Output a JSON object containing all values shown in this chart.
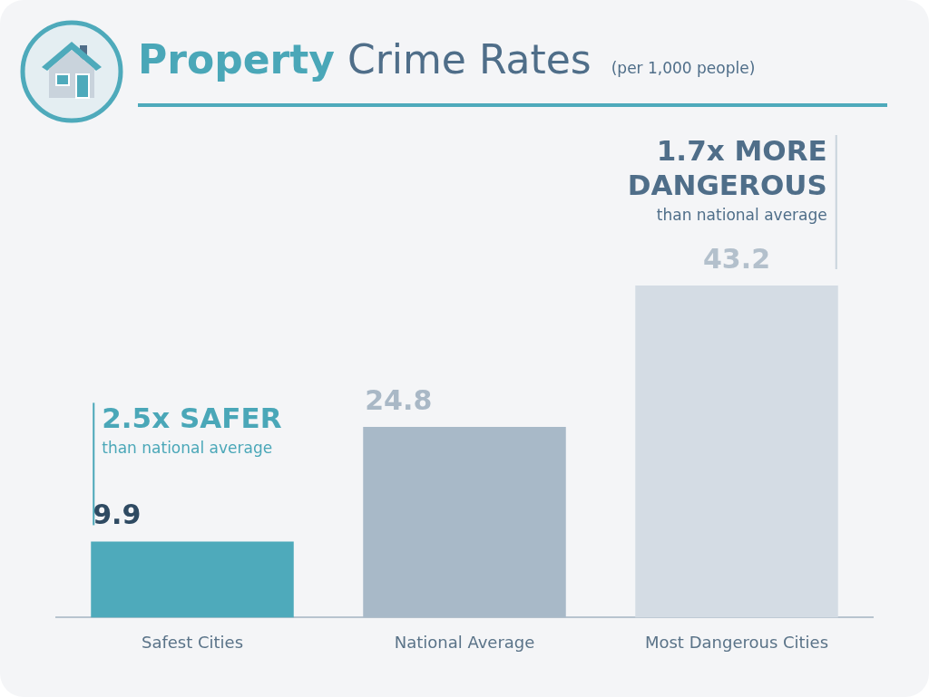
{
  "chart_data": {
    "type": "bar",
    "title": "Property Crime Rates",
    "subtitle": "(per 1,000 people)",
    "categories": [
      "Safest Cities",
      "National Average",
      "Most Dangerous Cities"
    ],
    "values": [
      9.9,
      24.8,
      43.2
    ],
    "colors": [
      "#4eaabb",
      "#a8b9c8",
      "#d4dce4"
    ],
    "data_labels": true,
    "grid": false,
    "legend": false,
    "annotations": [
      "2.5x SAFER",
      "than national average",
      "1.7x MORE",
      "DANGEROUS",
      "than national average"
    ]
  }
}
